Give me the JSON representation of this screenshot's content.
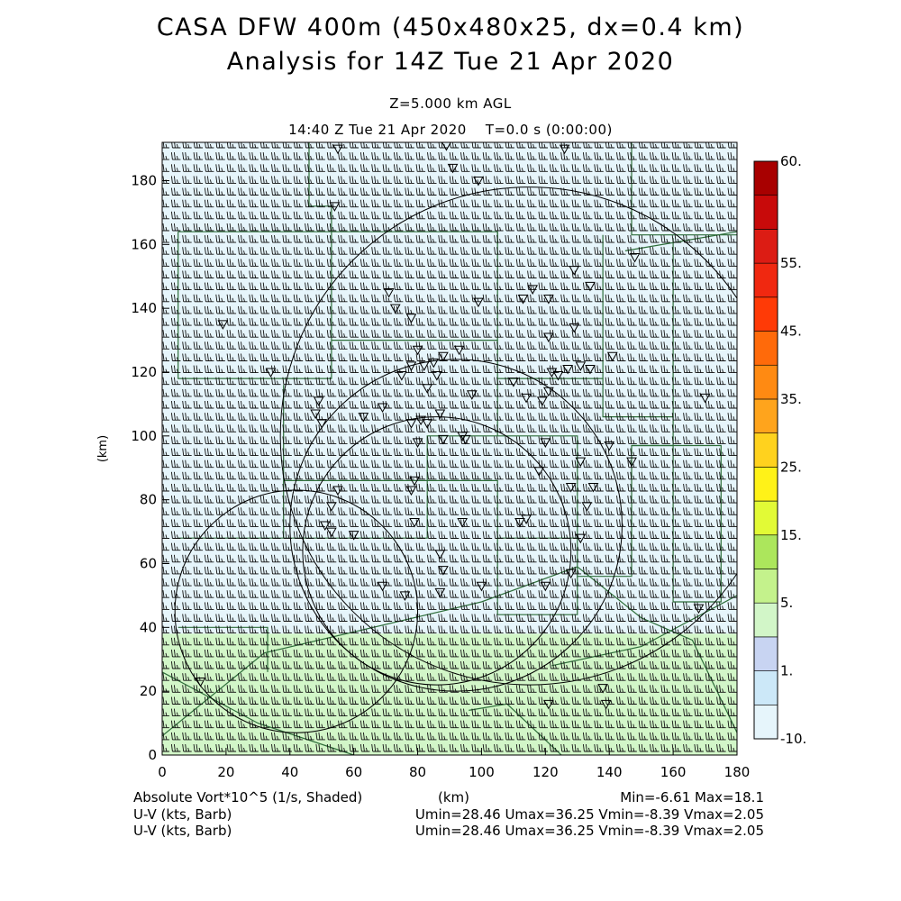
{
  "header": {
    "title_line1": "CASA DFW 400m (450x480x25, dx=0.4 km)",
    "title_line2": "Analysis for 14Z Tue 21 Apr 2020",
    "level": "Z=5.000 km AGL",
    "time_stamp": "14:40 Z Tue 21 Apr 2020",
    "time_elapsed": "T=0.0 s (0:00:00)"
  },
  "footer": {
    "field_label": "Absolute Vort*10^5 (1/s, Shaded)",
    "x_unit": "(km)",
    "field_range": "Min=-6.61 Max=18.1",
    "barb_label_1": "U-V (kts, Barb)",
    "barb_range_1": "Umin=28.46 Umax=36.25 Vmin=-8.39 Vmax=2.05",
    "barb_label_2": "U-V (kts, Barb)",
    "barb_range_2": "Umin=28.46 Umax=36.25 Vmin=-8.39 Vmax=2.05"
  },
  "colorbar": {
    "colors": [
      "#e6f5fb",
      "#cce8f8",
      "#c8d4f2",
      "#d2f6c8",
      "#c4f28c",
      "#ace65c",
      "#e2fa36",
      "#fff218",
      "#ffd21e",
      "#ffa41c",
      "#ff8a12",
      "#ff6a0a",
      "#ff3a06",
      "#f02810",
      "#dc1c14",
      "#c80a0a",
      "#a80000"
    ],
    "labels": [
      {
        "text": "-10.",
        "at": -10
      },
      {
        "text": "1.",
        "at": 1
      },
      {
        "text": "5.",
        "at": 5
      },
      {
        "text": "15.",
        "at": 15
      },
      {
        "text": "25.",
        "at": 25
      },
      {
        "text": "35.",
        "at": 35
      },
      {
        "text": "45.",
        "at": 45
      },
      {
        "text": "55.",
        "at": 55
      },
      {
        "text": "60.",
        "at": 60
      }
    ],
    "level_steps": [
      -10,
      -5,
      1,
      3,
      5,
      10,
      15,
      20,
      25,
      30,
      35,
      40,
      45,
      50,
      55,
      58,
      59,
      60
    ]
  },
  "chart_data": {
    "type": "heatmap",
    "title": "CASA DFW 400m (450x480x25, dx=0.4 km)",
    "xlabel": "(km)",
    "ylabel": "(km)",
    "xlim": [
      0,
      180
    ],
    "ylim": [
      0,
      192
    ],
    "x_ticks": [
      0,
      20,
      40,
      60,
      80,
      100,
      120,
      140,
      160,
      180
    ],
    "y_ticks": [
      0,
      20,
      40,
      60,
      80,
      100,
      120,
      140,
      160,
      180
    ],
    "field": "Absolute Vort*10^5 (1/s)",
    "field_min": -6.61,
    "field_max": 18.1,
    "shaded_regions": [
      {
        "ymin": 38,
        "ymax": 192,
        "value": 0,
        "color": "#e6f5fb"
      },
      {
        "ymin": 0,
        "ymax": 38,
        "value": 8,
        "color": "#d2f6c8"
      }
    ],
    "wind_barbs": {
      "u_min": 28.46,
      "u_max": 36.25,
      "v_min": -8.39,
      "v_max": 2.05,
      "units": "kts"
    },
    "radar_rings": [
      {
        "cx": 42,
        "cy": 45,
        "r": 38
      },
      {
        "cx": 86,
        "cy": 64,
        "r": 42
      },
      {
        "cx": 92,
        "cy": 72,
        "r": 52
      },
      {
        "cx": 115,
        "cy": 100,
        "r": 78
      }
    ],
    "stations": [
      [
        55,
        190
      ],
      [
        89,
        191
      ],
      [
        91,
        184
      ],
      [
        99,
        180
      ],
      [
        126,
        190
      ],
      [
        54,
        172
      ],
      [
        71,
        145
      ],
      [
        73,
        140
      ],
      [
        78,
        137
      ],
      [
        99,
        142
      ],
      [
        113,
        143
      ],
      [
        116,
        146
      ],
      [
        121,
        143
      ],
      [
        129,
        152
      ],
      [
        134,
        147
      ],
      [
        148,
        156
      ],
      [
        80,
        127
      ],
      [
        78,
        122
      ],
      [
        82,
        122
      ],
      [
        85,
        123
      ],
      [
        88,
        125
      ],
      [
        93,
        127
      ],
      [
        86,
        119
      ],
      [
        75,
        119
      ],
      [
        83,
        115
      ],
      [
        97,
        113
      ],
      [
        110,
        117
      ],
      [
        122,
        120
      ],
      [
        124,
        119
      ],
      [
        127,
        121
      ],
      [
        131,
        122
      ],
      [
        134,
        121
      ],
      [
        121,
        114
      ],
      [
        119,
        111
      ],
      [
        114,
        112
      ],
      [
        121,
        131
      ],
      [
        129,
        134
      ],
      [
        141,
        125
      ],
      [
        170,
        112
      ],
      [
        49,
        111
      ],
      [
        48,
        107
      ],
      [
        50,
        104
      ],
      [
        63,
        106
      ],
      [
        69,
        109
      ],
      [
        78,
        104
      ],
      [
        81,
        105
      ],
      [
        83,
        104
      ],
      [
        87,
        107
      ],
      [
        80,
        98
      ],
      [
        88,
        99
      ],
      [
        94,
        100
      ],
      [
        95,
        99
      ],
      [
        120,
        98
      ],
      [
        118,
        89
      ],
      [
        128,
        84
      ],
      [
        135,
        84
      ],
      [
        131,
        92
      ],
      [
        140,
        97
      ],
      [
        147,
        92
      ],
      [
        55,
        83
      ],
      [
        53,
        78
      ],
      [
        51,
        72
      ],
      [
        53,
        70
      ],
      [
        60,
        69
      ],
      [
        79,
        86
      ],
      [
        78,
        83
      ],
      [
        79,
        73
      ],
      [
        94,
        73
      ],
      [
        112,
        73
      ],
      [
        114,
        74
      ],
      [
        133,
        78
      ],
      [
        131,
        68
      ],
      [
        87,
        63
      ],
      [
        88,
        58
      ],
      [
        76,
        50
      ],
      [
        69,
        53
      ],
      [
        87,
        51
      ],
      [
        100,
        53
      ],
      [
        120,
        53
      ],
      [
        128,
        57
      ],
      [
        34,
        120
      ],
      [
        19,
        135
      ],
      [
        12,
        23
      ],
      [
        121,
        16
      ],
      [
        138,
        21
      ],
      [
        139,
        16
      ],
      [
        168,
        46
      ]
    ],
    "boundary_lines": [
      [
        [
          0,
          6
        ],
        [
          32,
          32
        ],
        [
          100,
          48
        ],
        [
          130,
          59
        ],
        [
          150,
          43
        ],
        [
          166,
          36
        ],
        [
          181,
          5
        ]
      ],
      [
        [
          0,
          26
        ],
        [
          30,
          10
        ],
        [
          60,
          0
        ]
      ],
      [
        [
          96,
          14
        ],
        [
          108,
          16
        ],
        [
          125,
          0
        ]
      ],
      [
        [
          122,
          28
        ],
        [
          150,
          34
        ],
        [
          180,
          50
        ]
      ],
      [
        [
          145,
          158
        ],
        [
          180,
          164
        ]
      ]
    ],
    "county_lines": [
      [
        [
          0,
          186
        ],
        [
          0,
          186
        ]
      ],
      [
        [
          46,
          192
        ],
        [
          46,
          172
        ],
        [
          53,
          172
        ],
        [
          53,
          164
        ],
        [
          100,
          164
        ],
        [
          105,
          164
        ],
        [
          105,
          160
        ]
      ],
      [
        [
          147,
          192
        ],
        [
          147,
          163
        ],
        [
          180,
          163
        ]
      ],
      [
        [
          5,
          164
        ],
        [
          53,
          164
        ],
        [
          53,
          118
        ],
        [
          5,
          118
        ],
        [
          5,
          164
        ]
      ],
      [
        [
          53,
          130
        ],
        [
          105,
          130
        ],
        [
          105,
          164
        ]
      ],
      [
        [
          105,
          130
        ],
        [
          105,
          118
        ],
        [
          138,
          118
        ],
        [
          138,
          163
        ]
      ],
      [
        [
          138,
          118
        ],
        [
          138,
          106
        ],
        [
          160,
          106
        ],
        [
          160,
          162
        ]
      ],
      [
        [
          38,
          116
        ],
        [
          38,
          68
        ],
        [
          5,
          68
        ]
      ],
      [
        [
          38,
          86
        ],
        [
          83,
          86
        ],
        [
          83,
          68
        ],
        [
          38,
          68
        ]
      ],
      [
        [
          83,
          86
        ],
        [
          83,
          100
        ],
        [
          105,
          100
        ],
        [
          105,
          118
        ]
      ],
      [
        [
          105,
          100
        ],
        [
          130,
          100
        ],
        [
          130,
          68
        ],
        [
          105,
          68
        ],
        [
          105,
          86
        ],
        [
          83,
          86
        ]
      ],
      [
        [
          130,
          68
        ],
        [
          130,
          56
        ],
        [
          147,
          56
        ],
        [
          147,
          97
        ],
        [
          160,
          97
        ],
        [
          160,
          106
        ]
      ],
      [
        [
          147,
          97
        ],
        [
          175,
          97
        ],
        [
          175,
          48
        ],
        [
          160,
          48
        ],
        [
          160,
          97
        ]
      ],
      [
        [
          5,
          40
        ],
        [
          33,
          40
        ],
        [
          33,
          26
        ]
      ],
      [
        [
          105,
          68
        ],
        [
          105,
          44
        ],
        [
          130,
          44
        ],
        [
          130,
          56
        ]
      ]
    ]
  }
}
